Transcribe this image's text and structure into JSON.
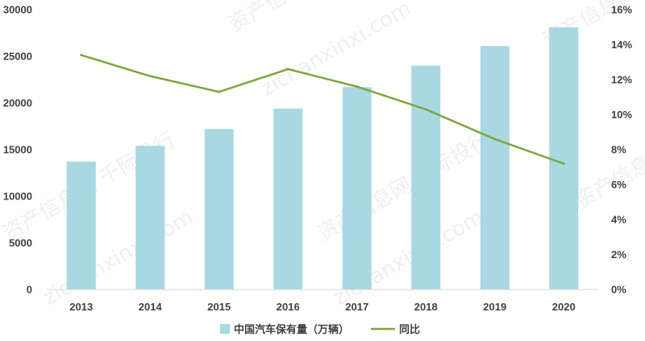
{
  "chart_data": {
    "type": "bar",
    "categories": [
      "2013",
      "2014",
      "2015",
      "2016",
      "2017",
      "2018",
      "2019",
      "2020"
    ],
    "series": [
      {
        "name": "中国汽车保有量（万辆）",
        "type": "bar",
        "axis": "left",
        "color": "#a8d8e2",
        "values": [
          13700,
          15400,
          17200,
          19400,
          21700,
          24000,
          26100,
          28100
        ]
      },
      {
        "name": "同比",
        "type": "line",
        "axis": "right",
        "color": "#7ea63a",
        "values": [
          13.4,
          12.2,
          11.3,
          12.6,
          11.6,
          10.3,
          8.6,
          7.2
        ]
      }
    ],
    "y_left": {
      "min": 0,
      "max": 30000,
      "ticks": [
        "0",
        "5000",
        "10000",
        "15000",
        "20000",
        "25000",
        "30000"
      ]
    },
    "y_right": {
      "min": 0,
      "max": 16,
      "ticks": [
        "0%",
        "2%",
        "4%",
        "6%",
        "8%",
        "10%",
        "12%",
        "14%",
        "16%"
      ]
    },
    "grid": false,
    "legend": "bottom-center"
  },
  "watermarks": [
    "资产信息网 千际投行",
    "zichanxinxi.com"
  ]
}
